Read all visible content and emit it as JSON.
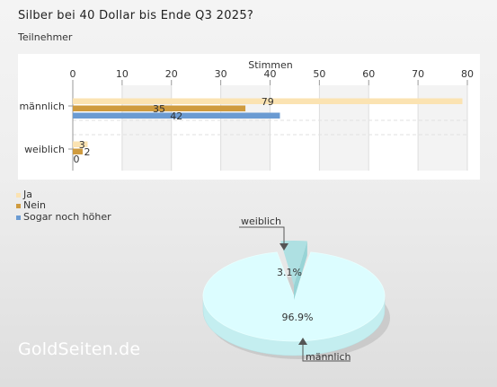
{
  "title": "Silber bei 40 Dollar bis Ende Q3 2025?",
  "subtitle": "Teilnehmer",
  "watermark": "GoldSeiten.de",
  "chart_data": [
    {
      "type": "bar",
      "orientation": "horizontal",
      "xlabel": "Stimmen",
      "xlim": [
        0,
        80
      ],
      "xticks": [
        0,
        10,
        20,
        30,
        40,
        50,
        60,
        70,
        80
      ],
      "categories": [
        "männlich",
        "weiblich"
      ],
      "series": [
        {
          "name": "Ja",
          "values": [
            79,
            3
          ],
          "color": "#fbe3b2"
        },
        {
          "name": "Nein",
          "values": [
            35,
            2
          ],
          "color": "#cf9b3f"
        },
        {
          "name": "Sogar noch höher",
          "values": [
            42,
            0
          ],
          "color": "#6b9bd2"
        }
      ],
      "grid": true,
      "legend_position": "bottom-left"
    },
    {
      "type": "pie",
      "style": "3d",
      "slices": [
        {
          "label": "männlich",
          "value": 96.9,
          "display": "96.9%",
          "color": "#dcfdff"
        },
        {
          "label": "weiblich",
          "value": 3.1,
          "display": "3.1%",
          "color": "#aee0e2"
        }
      ]
    }
  ]
}
